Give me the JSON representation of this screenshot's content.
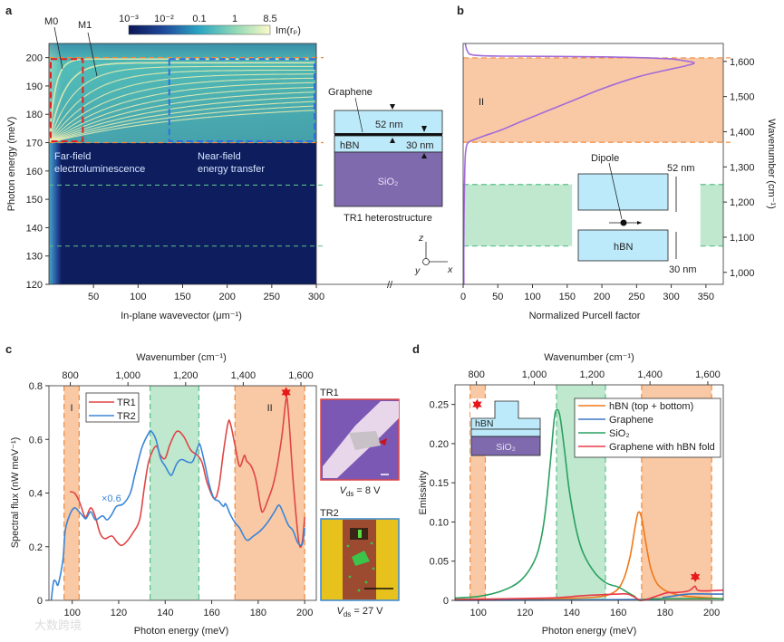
{
  "panel_labels": {
    "a": "a",
    "b": "b",
    "c": "c",
    "d": "d"
  },
  "colors": {
    "orange_band": "#f9c9a6",
    "orange_dash": "#f08a3c",
    "green_band": "#bfe8cf",
    "green_dash": "#5cc08a",
    "tr1": "#e04545",
    "tr2": "#3a86d6",
    "purcell": "#a36ad8",
    "hbn": "#f07818",
    "graphene": "#3a78c8",
    "sio2": "#2aa060",
    "fold": "#e83a4a",
    "hbn_fill": "#bdeafa",
    "sio2_fill": "#7f6aae"
  },
  "chart_data": [
    {
      "id": "a",
      "type": "heatmap",
      "xlabel": "In-plane wavevector (μm⁻¹)",
      "ylabel": "Photon energy (meV)",
      "xlim": [
        0,
        300
      ],
      "ylim": [
        120,
        205
      ],
      "xticks": [
        "50",
        "100",
        "150",
        "200",
        "250",
        "300"
      ],
      "yticks": [
        "120",
        "130",
        "140",
        "150",
        "160",
        "170",
        "180",
        "190",
        "200"
      ],
      "colorbar": {
        "label": "Im(rₚ)",
        "ticks": [
          "10⁻³",
          "10⁻²",
          "0.1",
          "1",
          "8.5"
        ]
      },
      "dashed_lines_meV": {
        "orange": [
          200,
          170
        ],
        "green": [
          155,
          133.5
        ]
      },
      "boxes": {
        "far_field_k": [
          2,
          38
        ],
        "near_field_k": [
          135,
          300
        ],
        "energy": [
          170.5,
          199.5
        ]
      },
      "annotations": {
        "m0": "M0",
        "m1": "M1",
        "far_field": [
          "Far-field",
          "electroluminescence"
        ],
        "near_field": [
          "Near-field",
          "energy transfer"
        ]
      },
      "inset": {
        "graphene": "Graphene",
        "top": "52 nm",
        "hbn": "hBN",
        "bottom": "30 nm",
        "substrate": "SiO₂",
        "caption": "TR1 heterostructure"
      },
      "axes_labels": {
        "z": "z",
        "y": "y",
        "x": "x"
      }
    },
    {
      "id": "b",
      "type": "line",
      "xlabel": "Normalized Purcell factor",
      "ylabel": "Wavenumber (cm⁻¹)",
      "xlim": [
        0,
        375
      ],
      "ylim": [
        966,
        1651
      ],
      "xticks": [
        0,
        50,
        100,
        150,
        200,
        250,
        300,
        350
      ],
      "yticks": [
        1000,
        1100,
        1200,
        1300,
        1400,
        1500,
        1600
      ],
      "ytick_labels": [
        "1,000",
        "1,100",
        "1,200",
        "1,300",
        "1,400",
        "1,500",
        "1,600"
      ],
      "bands": [
        {
          "color": "orange",
          "y": [
            1370,
            1610
          ],
          "x": [
            [
              0,
              375
            ]
          ]
        },
        {
          "color": "green",
          "y": [
            1075,
            1250
          ],
          "x": [
            [
              0,
              157
            ],
            [
              342,
              375
            ]
          ]
        }
      ],
      "band_label": "II",
      "series": [
        {
          "name": "Purcell factor",
          "points": [
            [
              3,
              1651
            ],
            [
              6,
              1630
            ],
            [
              15,
              1618
            ],
            [
              60,
              1615
            ],
            [
              200,
              1613
            ],
            [
              290,
              1608
            ],
            [
              318,
              1602
            ],
            [
              333,
              1596
            ],
            [
              322,
              1588
            ],
            [
              290,
              1574
            ],
            [
              250,
              1555
            ],
            [
              200,
              1522
            ],
            [
              160,
              1490
            ],
            [
              120,
              1458
            ],
            [
              85,
              1430
            ],
            [
              55,
              1405
            ],
            [
              30,
              1388
            ],
            [
              15,
              1377
            ],
            [
              8,
              1370
            ],
            [
              5,
              1360
            ],
            [
              3,
              1330
            ],
            [
              2,
              1250
            ],
            [
              1,
              1100
            ],
            [
              1,
              966
            ]
          ]
        }
      ],
      "inset": {
        "dipole": "Dipole",
        "top": "52 nm",
        "hbn": "hBN",
        "bottom": "30 nm"
      }
    },
    {
      "id": "c",
      "type": "line",
      "xlabel": "Photon energy (meV)",
      "ylabel": "Spectral flux (nW meV⁻¹)",
      "top_xlabel": "Wavenumber (cm⁻¹)",
      "xlim": [
        90,
        205
      ],
      "ylim": [
        0,
        0.8
      ],
      "xticks": [
        100,
        120,
        140,
        160,
        180,
        200
      ],
      "yticks": [
        0,
        0.2,
        0.4,
        0.6,
        0.8
      ],
      "ytick_labels": [
        "0",
        "0.2",
        "0.4",
        "0.6",
        "0.8"
      ],
      "top_ticks": [
        800,
        1000,
        1200,
        1400,
        1600
      ],
      "top_tick_labels": [
        "800",
        "1,000",
        "1,200",
        "1,400",
        "1,600"
      ],
      "bands": [
        {
          "color": "orange",
          "x": [
            96.5,
            103
          ],
          "label": "I"
        },
        {
          "color": "green",
          "x": [
            133.5,
            154.5
          ],
          "label": ""
        },
        {
          "color": "orange",
          "x": [
            170,
            200
          ],
          "label": "II"
        }
      ],
      "scale_note": "×0.6",
      "series": [
        {
          "name": "TR1",
          "color": "tr1",
          "points": [
            [
              99,
              0.405
            ],
            [
              101,
              0.4
            ],
            [
              103,
              0.37
            ],
            [
              105,
              0.32
            ],
            [
              106,
              0.31
            ],
            [
              108,
              0.345
            ],
            [
              110,
              0.31
            ],
            [
              112,
              0.25
            ],
            [
              114,
              0.23
            ],
            [
              117,
              0.24
            ],
            [
              119,
              0.22
            ],
            [
              121,
              0.205
            ],
            [
              123,
              0.215
            ],
            [
              126,
              0.25
            ],
            [
              129,
              0.3
            ],
            [
              131,
              0.42
            ],
            [
              133,
              0.52
            ],
            [
              136,
              0.575
            ],
            [
              138,
              0.54
            ],
            [
              140,
              0.53
            ],
            [
              142,
              0.58
            ],
            [
              145,
              0.63
            ],
            [
              148,
              0.61
            ],
            [
              151,
              0.56
            ],
            [
              154,
              0.54
            ],
            [
              156,
              0.51
            ],
            [
              158,
              0.44
            ],
            [
              161,
              0.38
            ],
            [
              163,
              0.42
            ],
            [
              165,
              0.55
            ],
            [
              167,
              0.66
            ],
            [
              168,
              0.66
            ],
            [
              170,
              0.58
            ],
            [
              172,
              0.5
            ],
            [
              174,
              0.54
            ],
            [
              175,
              0.52
            ],
            [
              177,
              0.5
            ],
            [
              179,
              0.45
            ],
            [
              181,
              0.35
            ],
            [
              182,
              0.33
            ],
            [
              184,
              0.37
            ],
            [
              187,
              0.45
            ],
            [
              190,
              0.6
            ],
            [
              192,
              0.75
            ],
            [
              193,
              0.7
            ],
            [
              195,
              0.45
            ],
            [
              197,
              0.25
            ],
            [
              198,
              0.2
            ],
            [
              199,
              0.22
            ],
            [
              200,
              0.31
            ]
          ]
        },
        {
          "name": "TR2",
          "color": "tr2",
          "points": [
            [
              91,
              0.0
            ],
            [
              92,
              0.07
            ],
            [
              93,
              0.07
            ],
            [
              94,
              0.06
            ],
            [
              96,
              0.15
            ],
            [
              97,
              0.26
            ],
            [
              99,
              0.32
            ],
            [
              101,
              0.345
            ],
            [
              103,
              0.33
            ],
            [
              105,
              0.31
            ],
            [
              106,
              0.305
            ],
            [
              108,
              0.33
            ],
            [
              110,
              0.3
            ],
            [
              113,
              0.315
            ],
            [
              115,
              0.3
            ],
            [
              117,
              0.32
            ],
            [
              119,
              0.35
            ],
            [
              122,
              0.36
            ],
            [
              125,
              0.4
            ],
            [
              127,
              0.47
            ],
            [
              130,
              0.57
            ],
            [
              133,
              0.625
            ],
            [
              134,
              0.63
            ],
            [
              136,
              0.6
            ],
            [
              138,
              0.53
            ],
            [
              140,
              0.5
            ],
            [
              142,
              0.47
            ],
            [
              143,
              0.47
            ],
            [
              145,
              0.51
            ],
            [
              147,
              0.525
            ],
            [
              150,
              0.515
            ],
            [
              152,
              0.52
            ],
            [
              154,
              0.57
            ],
            [
              155,
              0.58
            ],
            [
              157,
              0.51
            ],
            [
              159,
              0.43
            ],
            [
              161,
              0.38
            ],
            [
              163,
              0.37
            ],
            [
              165,
              0.35
            ],
            [
              166,
              0.36
            ],
            [
              168,
              0.32
            ],
            [
              170,
              0.29
            ],
            [
              172,
              0.27
            ],
            [
              175,
              0.225
            ],
            [
              178,
              0.24
            ],
            [
              181,
              0.26
            ],
            [
              184,
              0.29
            ],
            [
              187,
              0.33
            ],
            [
              189,
              0.355
            ],
            [
              191,
              0.32
            ],
            [
              193,
              0.28
            ],
            [
              195,
              0.26
            ],
            [
              197,
              0.215
            ],
            [
              199,
              0.21
            ],
            [
              200,
              0.27
            ]
          ]
        }
      ],
      "star_marker": [
        192,
        0.775
      ],
      "photos": [
        {
          "title": "TR1",
          "v_symbol": "V",
          "v_sub": "ds",
          "v_value": " = 8 V"
        },
        {
          "title": "TR2",
          "v_symbol": "V",
          "v_sub": "ds",
          "v_value": " = 27 V"
        }
      ]
    },
    {
      "id": "d",
      "type": "line",
      "xlabel": "Photon energy (meV)",
      "ylabel": "Emissivity",
      "top_xlabel": "Wavenumber (cm⁻¹)",
      "xlim": [
        90,
        205
      ],
      "ylim": [
        0,
        0.275
      ],
      "xticks": [
        100,
        120,
        140,
        160,
        180,
        200
      ],
      "yticks": [
        0,
        0.05,
        0.1,
        0.15,
        0.2,
        0.25
      ],
      "ytick_labels": [
        "0",
        "0.05",
        "0.10",
        "0.15",
        "0.20",
        "0.25"
      ],
      "top_ticks": [
        800,
        1000,
        1200,
        1400,
        1600
      ],
      "top_tick_labels": [
        "800",
        "1,000",
        "1,200",
        "1,400",
        "1,600"
      ],
      "bands": [
        {
          "color": "orange",
          "x": [
            96.5,
            103
          ]
        },
        {
          "color": "green",
          "x": [
            133.5,
            154.5
          ]
        },
        {
          "color": "orange",
          "x": [
            170,
            200
          ]
        }
      ],
      "series": [
        {
          "name": "hBN (top + bottom)",
          "color": "hbn",
          "points": [
            [
              90,
              0.001
            ],
            [
              130,
              0.002
            ],
            [
              150,
              0.004
            ],
            [
              158,
              0.01
            ],
            [
              162,
              0.025
            ],
            [
              165,
              0.055
            ],
            [
              167,
              0.09
            ],
            [
              168.5,
              0.112
            ],
            [
              170,
              0.105
            ],
            [
              172,
              0.07
            ],
            [
              174,
              0.04
            ],
            [
              177,
              0.02
            ],
            [
              182,
              0.01
            ],
            [
              190,
              0.005
            ],
            [
              205,
              0.002
            ]
          ]
        },
        {
          "name": "Graphene",
          "color": "graphene",
          "points": [
            [
              90,
              0.0
            ],
            [
              170,
              0.001
            ],
            [
              180,
              0.004
            ],
            [
              190,
              0.008
            ],
            [
              200,
              0.008
            ],
            [
              205,
              0.008
            ]
          ]
        },
        {
          "name": "SiO₂",
          "color": "sio2",
          "points": [
            [
              90,
              0.003
            ],
            [
              100,
              0.005
            ],
            [
              110,
              0.012
            ],
            [
              118,
              0.025
            ],
            [
              124,
              0.05
            ],
            [
              127,
              0.08
            ],
            [
              129,
              0.12
            ],
            [
              131,
              0.18
            ],
            [
              132.5,
              0.23
            ],
            [
              133.5,
              0.243
            ],
            [
              135,
              0.235
            ],
            [
              137,
              0.19
            ],
            [
              139,
              0.14
            ],
            [
              142,
              0.09
            ],
            [
              145,
              0.06
            ],
            [
              150,
              0.035
            ],
            [
              155,
              0.022
            ],
            [
              160,
              0.017
            ],
            [
              164,
              0.01
            ],
            [
              167,
              0.005
            ],
            [
              169,
              0.0
            ],
            [
              175,
              0.002
            ],
            [
              205,
              0.002
            ]
          ]
        },
        {
          "name": "Graphene with hBN fold",
          "color": "fold",
          "points": [
            [
              90,
              0.001
            ],
            [
              130,
              0.003
            ],
            [
              145,
              0.006
            ],
            [
              160,
              0.008
            ],
            [
              164,
              0.008
            ],
            [
              167,
              0.004
            ],
            [
              170,
              0.0
            ],
            [
              175,
              0.004
            ],
            [
              180,
              0.009
            ],
            [
              182,
              0.01
            ],
            [
              185,
              0.01
            ],
            [
              190,
              0.012
            ],
            [
              192,
              0.016
            ],
            [
              193,
              0.018
            ],
            [
              194,
              0.013
            ],
            [
              197,
              0.012
            ],
            [
              205,
              0.013
            ]
          ]
        }
      ],
      "star_markers": [
        [
          99.5,
          0.25
        ],
        [
          193,
          0.03
        ]
      ],
      "inset": {
        "hbn": "hBN",
        "substrate": "SiO₂"
      }
    }
  ],
  "watermark": "大数跨境"
}
